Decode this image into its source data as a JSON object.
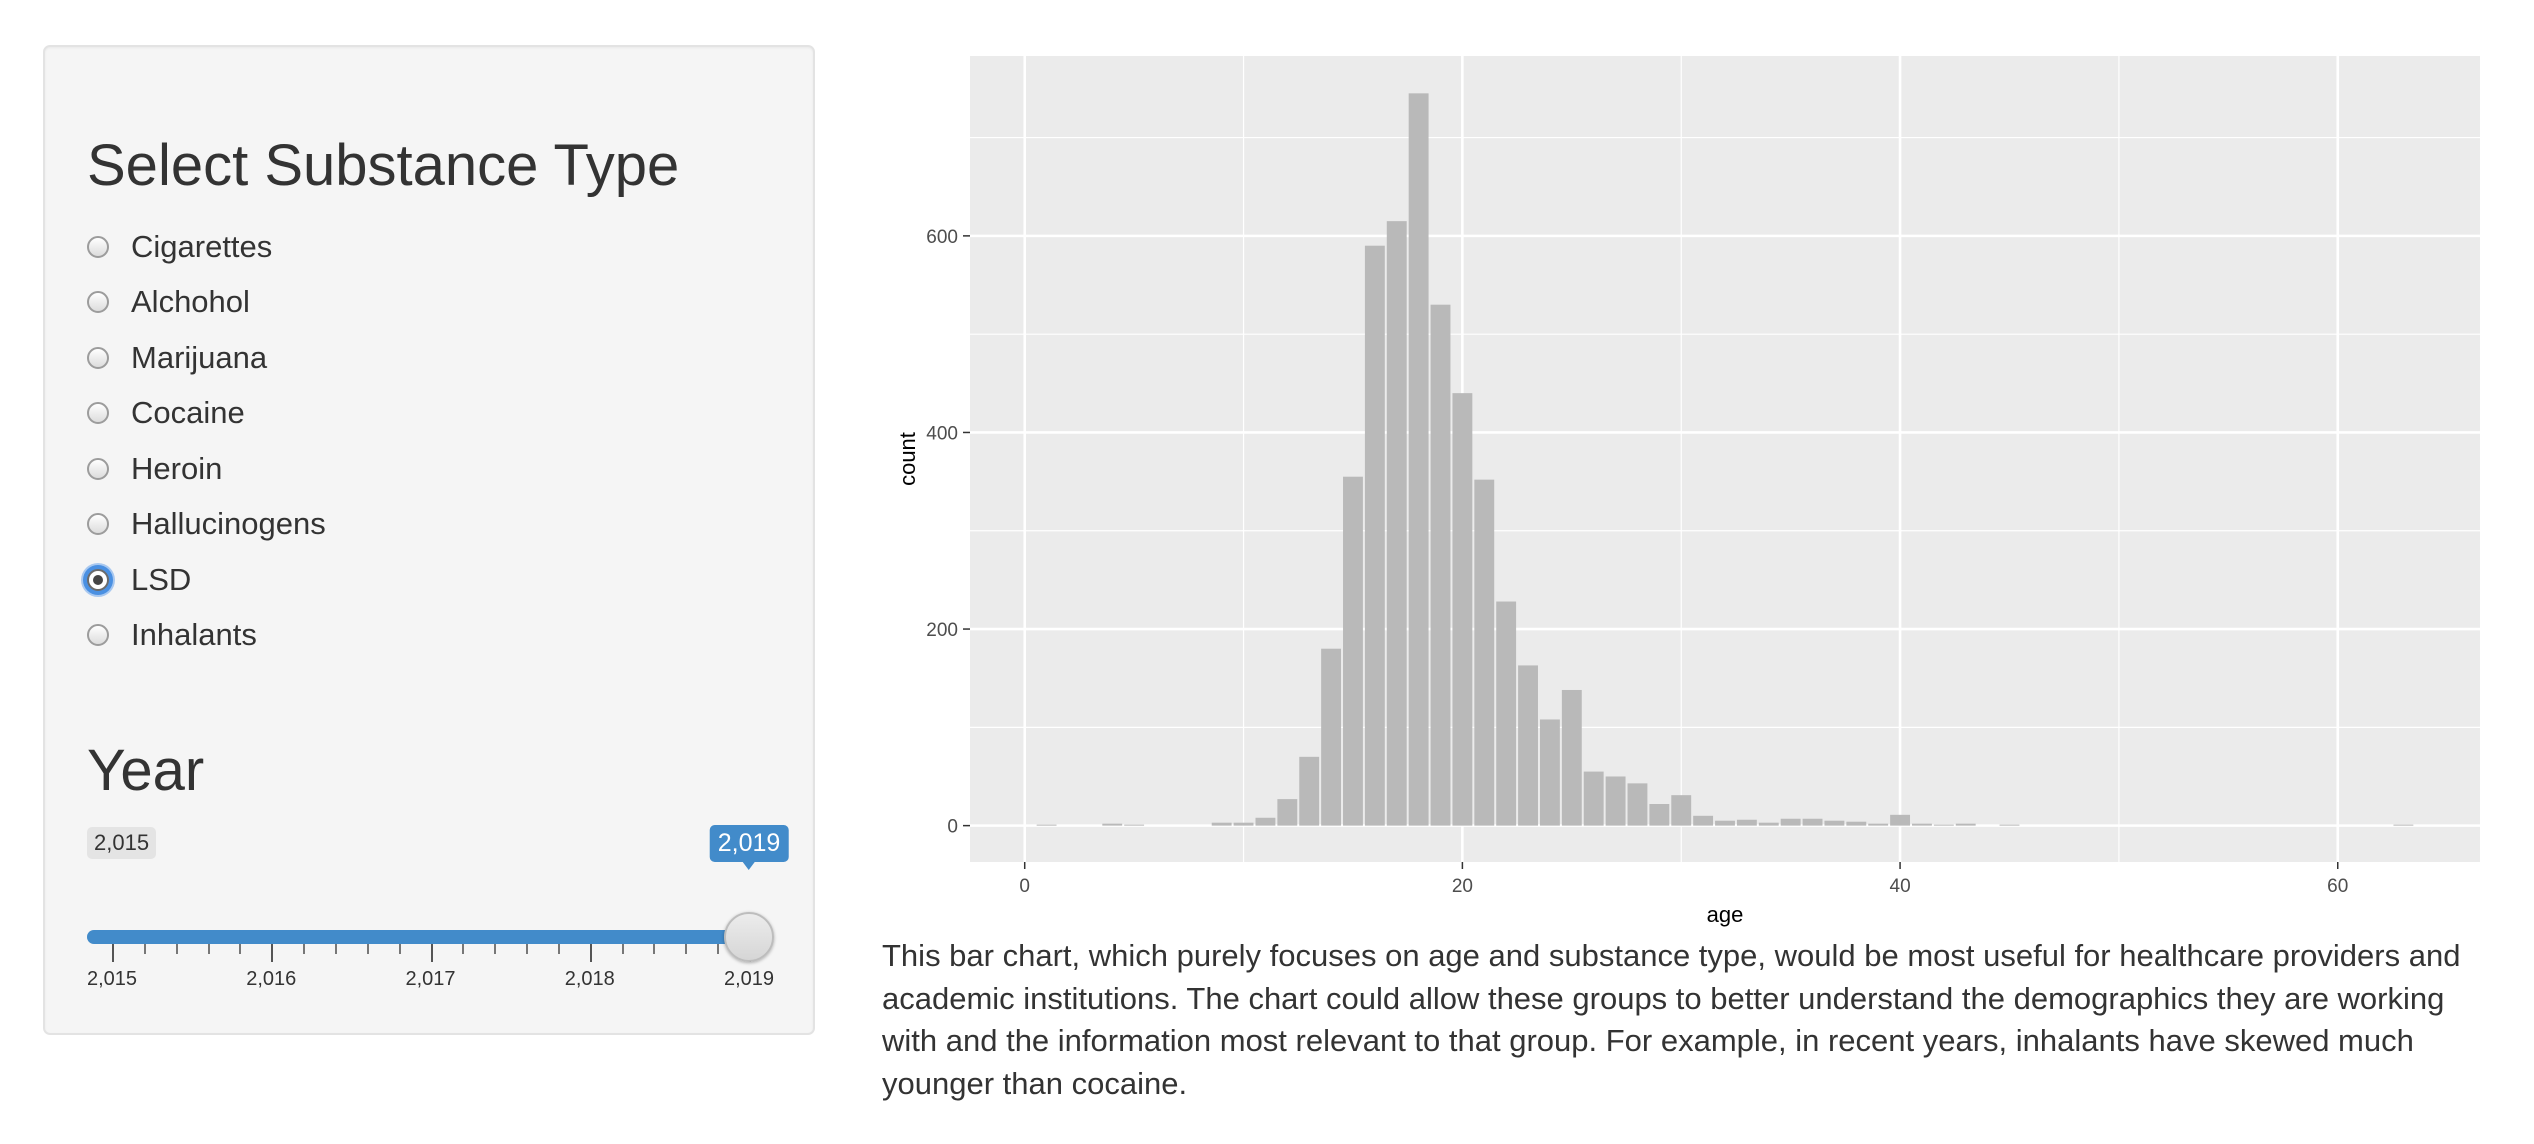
{
  "sidebar": {
    "substance_heading": "Select Substance Type",
    "substance_options": [
      {
        "label": "Cigarettes",
        "checked": false
      },
      {
        "label": "Alchohol",
        "checked": false
      },
      {
        "label": "Marijuana",
        "checked": false
      },
      {
        "label": "Cocaine",
        "checked": false
      },
      {
        "label": "Heroin",
        "checked": false
      },
      {
        "label": "Hallucinogens",
        "checked": false
      },
      {
        "label": "LSD",
        "checked": true
      },
      {
        "label": "Inhalants",
        "checked": false
      }
    ],
    "year_heading": "Year",
    "year_slider": {
      "min": 2015,
      "max": 2019,
      "value": 2019,
      "min_label": "2,015",
      "value_label": "2,019",
      "tick_labels": [
        "2,015",
        "2,016",
        "2,017",
        "2,018",
        "2,019"
      ]
    }
  },
  "chart_data": {
    "type": "bar",
    "title": "",
    "xlabel": "age",
    "ylabel": "count",
    "xlim": [
      -2.5,
      66.5
    ],
    "ylim": [
      -37,
      783
    ],
    "x_ticks": [
      0,
      20,
      40,
      60
    ],
    "y_ticks": [
      0,
      200,
      400,
      600
    ],
    "x_tick_labels": [
      "0",
      "20",
      "40",
      "60"
    ],
    "y_tick_labels": [
      "0",
      "200",
      "400",
      "600"
    ],
    "grid": true,
    "bar_color": "#b9b9b9",
    "panel_color": "#ebebeb",
    "x": [
      1,
      4,
      5,
      9,
      10,
      11,
      12,
      13,
      14,
      15,
      16,
      17,
      18,
      19,
      20,
      21,
      22,
      23,
      24,
      25,
      26,
      27,
      28,
      29,
      30,
      31,
      32,
      33,
      34,
      35,
      36,
      37,
      38,
      39,
      40,
      41,
      42,
      43,
      45,
      63
    ],
    "values": [
      1,
      2,
      1,
      3,
      3,
      8,
      27,
      70,
      180,
      355,
      590,
      615,
      745,
      530,
      440,
      352,
      228,
      163,
      108,
      138,
      55,
      50,
      43,
      22,
      31,
      10,
      5,
      6,
      3,
      7,
      7,
      5,
      4,
      2,
      11,
      2,
      1,
      2,
      1,
      1
    ]
  },
  "description": "This bar chart, which purely focuses on age and substance type, would be most useful for healthcare providers and academic institutions. The chart could allow these groups to better understand the demographics they are working with and the information most relevant to that group. For example, in recent years, inhalants have skewed much younger than cocaine."
}
